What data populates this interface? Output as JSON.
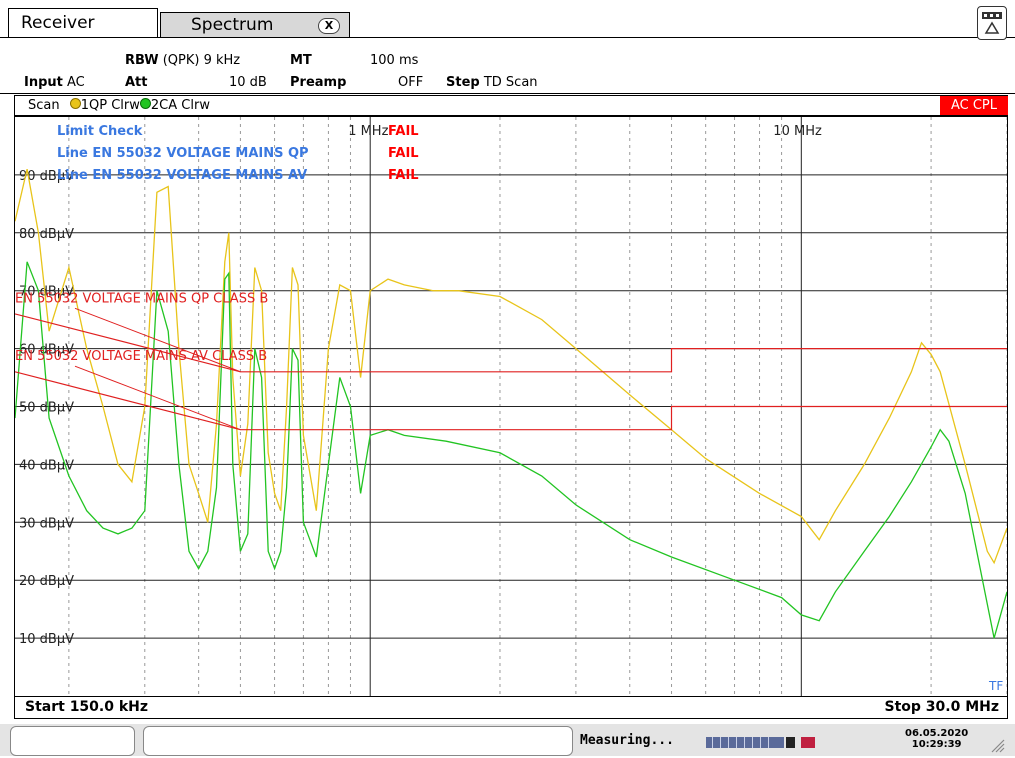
{
  "tabs": {
    "receiver": "Receiver",
    "spectrum": "Spectrum",
    "close_glyph": "X"
  },
  "settings": {
    "rbw_label": "RBW",
    "rbw_value": "(QPK) 9 kHz",
    "mt_label": "MT",
    "mt_value": "100 ms",
    "input_label": "Input",
    "input_value": "AC",
    "att_label": "Att",
    "att_value": "10 dB",
    "preamp_label": "Preamp",
    "preamp_value": "OFF",
    "step_label": "Step",
    "step_value": "TD Scan"
  },
  "scan_bar": {
    "scan": "Scan",
    "trace1": "1QP Clrw",
    "trace2": "2CA Clrw",
    "coupling": "AC CPL",
    "trace1_color": "#e8c41a",
    "trace2_color": "#22c422",
    "coupling_color": "#ff0000"
  },
  "limit_check": {
    "title": "Limit Check",
    "title_status": "FAIL",
    "line1": "Line EN 55032 VOLTAGE MAINS QP",
    "line1_status": "FAIL",
    "line2": "Line EN 55032 VOLTAGE MAINS AV",
    "line2_status": "FAIL",
    "text_color": "#3a78e0",
    "fail_color": "#ff0000"
  },
  "freq_markers": {
    "m1": "1 MHz",
    "m2": "10 MHz"
  },
  "limit_labels": {
    "qp": "EN 55032 VOLTAGE MAINS QP CLASS B",
    "av": "EN 55032 VOLTAGE MAINS AV CLASS B"
  },
  "tf_label": "TF",
  "footer_row": {
    "start": "Start 150.0 kHz",
    "stop": "Stop 30.0 MHz"
  },
  "status": {
    "measuring": "Measuring...",
    "date": "06.05.2020",
    "time": "10:29:39"
  },
  "chart_data": {
    "type": "line",
    "title": "",
    "xlabel": "",
    "ylabel": "",
    "x_scale": "log",
    "xlim_hz": [
      150000,
      30000000
    ],
    "ylim": [
      0,
      100
    ],
    "ytick_labels": [
      {
        "value": 90,
        "label": "90 dBµV"
      },
      {
        "value": 80,
        "label": "80 dBµV"
      },
      {
        "value": 70,
        "label": "70 dBµV"
      },
      {
        "value": 60,
        "label": "60 dBµV"
      },
      {
        "value": 50,
        "label": "50 dBµV"
      },
      {
        "value": 40,
        "label": "40 dBµV"
      },
      {
        "value": 30,
        "label": "30 dBµV"
      },
      {
        "value": 20,
        "label": "20 dBµV"
      },
      {
        "value": 10,
        "label": "10 dBµV"
      }
    ],
    "limit_lines": [
      {
        "name": "EN 55032 VOLTAGE MAINS QP CLASS B",
        "color": "#e02020",
        "points": [
          [
            150000,
            66
          ],
          [
            500000,
            56
          ],
          [
            5000000,
            56
          ],
          [
            5000000,
            60
          ],
          [
            30000000,
            60
          ]
        ]
      },
      {
        "name": "EN 55032 VOLTAGE MAINS AV CLASS B",
        "color": "#e02020",
        "points": [
          [
            150000,
            56
          ],
          [
            500000,
            46
          ],
          [
            5000000,
            46
          ],
          [
            5000000,
            50
          ],
          [
            30000000,
            50
          ]
        ]
      }
    ],
    "series": [
      {
        "name": "1QP Clrw",
        "color": "#e8c41a",
        "points": [
          [
            150000,
            82
          ],
          [
            160000,
            91
          ],
          [
            170000,
            80
          ],
          [
            180000,
            63
          ],
          [
            200000,
            74
          ],
          [
            220000,
            60
          ],
          [
            240000,
            50
          ],
          [
            260000,
            40
          ],
          [
            280000,
            37
          ],
          [
            300000,
            50
          ],
          [
            320000,
            87
          ],
          [
            340000,
            88
          ],
          [
            360000,
            60
          ],
          [
            380000,
            40
          ],
          [
            400000,
            35
          ],
          [
            420000,
            30
          ],
          [
            440000,
            47
          ],
          [
            460000,
            75
          ],
          [
            470000,
            80
          ],
          [
            480000,
            55
          ],
          [
            500000,
            38
          ],
          [
            520000,
            47
          ],
          [
            540000,
            74
          ],
          [
            560000,
            70
          ],
          [
            580000,
            42
          ],
          [
            600000,
            35
          ],
          [
            620000,
            32
          ],
          [
            640000,
            50
          ],
          [
            660000,
            74
          ],
          [
            680000,
            71
          ],
          [
            700000,
            45
          ],
          [
            750000,
            32
          ],
          [
            800000,
            60
          ],
          [
            850000,
            71
          ],
          [
            900000,
            70
          ],
          [
            950000,
            55
          ],
          [
            1000000,
            70
          ],
          [
            1100000,
            72
          ],
          [
            1200000,
            71
          ],
          [
            1400000,
            70
          ],
          [
            1600000,
            70
          ],
          [
            2000000,
            69
          ],
          [
            2500000,
            65
          ],
          [
            3000000,
            60
          ],
          [
            4000000,
            52
          ],
          [
            5000000,
            46
          ],
          [
            6000000,
            41
          ],
          [
            8000000,
            35
          ],
          [
            10000000,
            31
          ],
          [
            11000000,
            27
          ],
          [
            12000000,
            32
          ],
          [
            14000000,
            40
          ],
          [
            16000000,
            48
          ],
          [
            18000000,
            56
          ],
          [
            19000000,
            61
          ],
          [
            20000000,
            59
          ],
          [
            21000000,
            56
          ],
          [
            24000000,
            40
          ],
          [
            27000000,
            25
          ],
          [
            28000000,
            23
          ],
          [
            30000000,
            29
          ]
        ]
      },
      {
        "name": "2CA Clrw",
        "color": "#22c422",
        "points": [
          [
            150000,
            48
          ],
          [
            160000,
            75
          ],
          [
            170000,
            70
          ],
          [
            180000,
            48
          ],
          [
            200000,
            38
          ],
          [
            220000,
            32
          ],
          [
            240000,
            29
          ],
          [
            260000,
            28
          ],
          [
            280000,
            29
          ],
          [
            300000,
            32
          ],
          [
            320000,
            70
          ],
          [
            340000,
            63
          ],
          [
            360000,
            40
          ],
          [
            380000,
            25
          ],
          [
            400000,
            22
          ],
          [
            420000,
            25
          ],
          [
            440000,
            36
          ],
          [
            460000,
            72
          ],
          [
            470000,
            73
          ],
          [
            480000,
            40
          ],
          [
            500000,
            25
          ],
          [
            520000,
            28
          ],
          [
            540000,
            60
          ],
          [
            560000,
            55
          ],
          [
            580000,
            25
          ],
          [
            600000,
            22
          ],
          [
            620000,
            25
          ],
          [
            640000,
            36
          ],
          [
            660000,
            60
          ],
          [
            680000,
            58
          ],
          [
            700000,
            30
          ],
          [
            750000,
            24
          ],
          [
            800000,
            40
          ],
          [
            850000,
            55
          ],
          [
            900000,
            50
          ],
          [
            950000,
            35
          ],
          [
            1000000,
            45
          ],
          [
            1100000,
            46
          ],
          [
            1200000,
            45
          ],
          [
            1500000,
            44
          ],
          [
            2000000,
            42
          ],
          [
            2500000,
            38
          ],
          [
            3000000,
            33
          ],
          [
            4000000,
            27
          ],
          [
            5000000,
            24
          ],
          [
            7000000,
            20
          ],
          [
            9000000,
            17
          ],
          [
            10000000,
            14
          ],
          [
            11000000,
            13
          ],
          [
            12000000,
            18
          ],
          [
            14000000,
            25
          ],
          [
            16000000,
            31
          ],
          [
            18000000,
            37
          ],
          [
            20000000,
            43
          ],
          [
            21000000,
            46
          ],
          [
            22000000,
            44
          ],
          [
            24000000,
            35
          ],
          [
            26000000,
            22
          ],
          [
            28000000,
            10
          ],
          [
            30000000,
            18
          ]
        ]
      }
    ],
    "grid": "on"
  }
}
